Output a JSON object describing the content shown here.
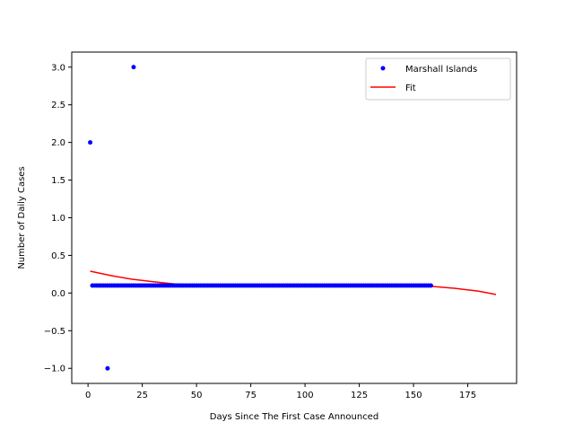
{
  "chart_data": {
    "type": "scatter",
    "title": "",
    "xlabel": "Days Since The First Case Announced",
    "ylabel": "Number of Daily Cases",
    "xlim": [
      -7.5,
      197.5
    ],
    "ylim": [
      -1.2,
      3.2
    ],
    "x_ticks": [
      0,
      25,
      50,
      75,
      100,
      125,
      150,
      175
    ],
    "y_ticks": [
      -1.0,
      -0.5,
      0.0,
      0.5,
      1.0,
      1.5,
      2.0,
      2.5,
      3.0
    ],
    "x_tick_labels": [
      "0",
      "25",
      "50",
      "75",
      "100",
      "125",
      "150",
      "175"
    ],
    "y_tick_labels": [
      "−1.0",
      "−0.5",
      "0.0",
      "0.5",
      "1.0",
      "1.5",
      "2.0",
      "2.5",
      "3.0"
    ],
    "grid": false,
    "legend_position": "top-right",
    "series": [
      {
        "name": "Marshall Islands",
        "kind": "points",
        "color": "#0000ff",
        "baseline": {
          "x_range": [
            2,
            158
          ],
          "y": 0.1
        },
        "outliers": [
          {
            "x": 1,
            "y": 2
          },
          {
            "x": 9,
            "y": -1
          },
          {
            "x": 21,
            "y": 3
          }
        ]
      },
      {
        "name": "Fit",
        "kind": "line",
        "color": "#ff0000",
        "x": [
          1,
          10,
          20,
          30,
          40,
          50,
          60,
          75,
          100,
          125,
          150,
          160,
          170,
          180,
          188
        ],
        "y": [
          0.29,
          0.235,
          0.185,
          0.15,
          0.12,
          0.1,
          0.1,
          0.1,
          0.1,
          0.1,
          0.1,
          0.085,
          0.06,
          0.025,
          -0.02
        ]
      }
    ]
  }
}
